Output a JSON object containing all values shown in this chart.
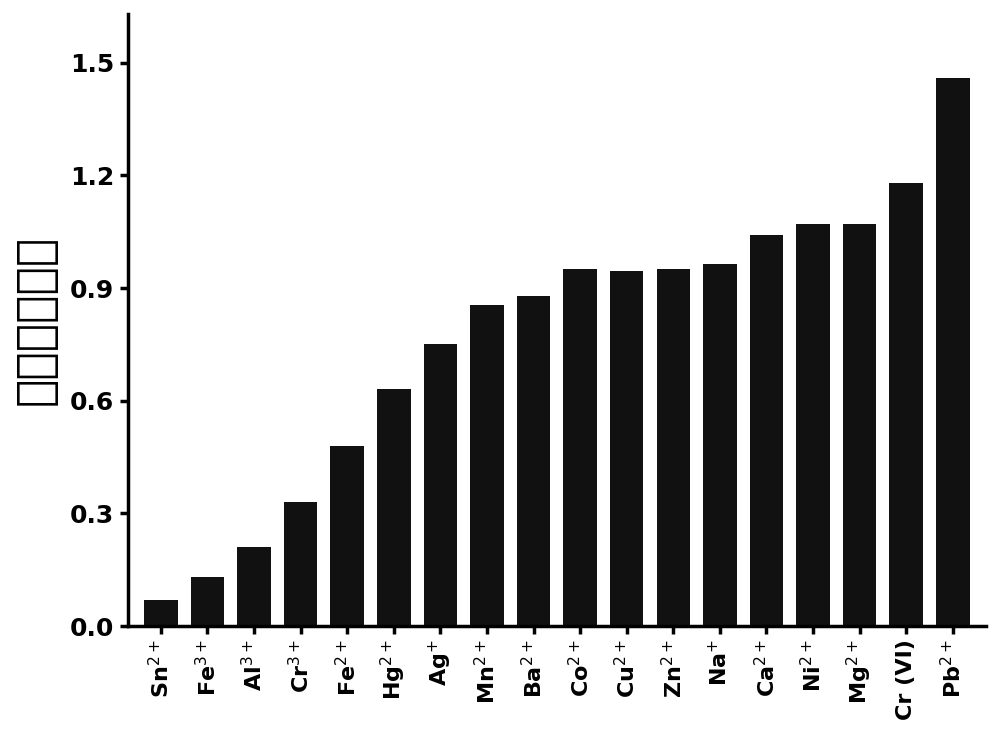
{
  "categories": [
    "Sn$^{2+}$",
    "Fe$^{3+}$",
    "Al$^{3+}$",
    "Cr$^{3+}$",
    "Fe$^{2+}$",
    "Hg$^{2+}$",
    "Ag$^{+}$",
    "Mn$^{2+}$",
    "Ba$^{2+}$",
    "Co$^{2+}$",
    "Cu$^{2+}$",
    "Zn$^{2+}$",
    "Na$^{+}$",
    "Ca$^{2+}$",
    "Ni$^{2+}$",
    "Mg$^{2+}$",
    "Cr (VI)",
    "Pb$^{2+}$"
  ],
  "values": [
    0.07,
    0.13,
    0.21,
    0.33,
    0.48,
    0.63,
    0.75,
    0.855,
    0.88,
    0.95,
    0.945,
    0.95,
    0.965,
    1.04,
    1.07,
    1.07,
    1.18,
    1.46
  ],
  "bar_color": "#111111",
  "ylabel": "相对荧光强度",
  "ylim": [
    0,
    1.63
  ],
  "yticks": [
    0.0,
    0.3,
    0.6,
    0.9,
    1.2,
    1.5
  ],
  "background_color": "#ffffff",
  "xlabel_fontsize": 16,
  "ylabel_fontsize": 34,
  "ytick_fontsize": 18,
  "bar_edge_color": "#111111",
  "bar_width": 0.72
}
